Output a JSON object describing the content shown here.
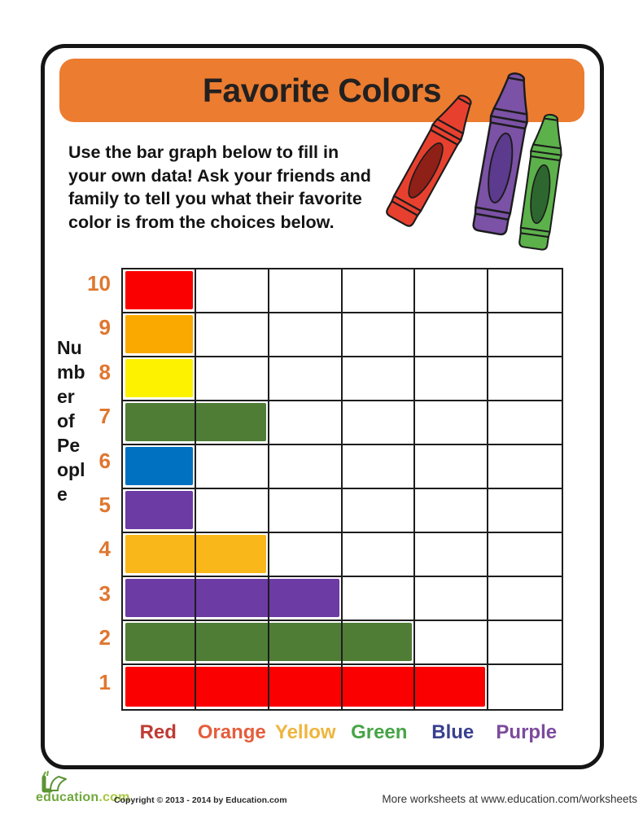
{
  "page": {
    "title_banner": {
      "label": "Favorite Colors",
      "bg_color": "#EC7C30",
      "text_color": "#232020"
    },
    "instructions": "Use the bar graph below to fill in\nyour own data! Ask your friends and\nfamily to tell you what their favorite\ncolor is from the choices below.",
    "footer": {
      "logo_education": "education",
      "logo_com": ".com",
      "logo_green": "#6FA83C",
      "logo_light_green": "#A6C73D",
      "copyright": "Copyright © 2013 - 2014 by Education.com",
      "more_worksheets": "More worksheets at www.education.com/worksheets"
    }
  },
  "crayons": [
    {
      "name": "red-crayon",
      "body": "#E8402F",
      "label_oval": "#8E2017"
    },
    {
      "name": "purple-crayon",
      "body": "#7B52A5",
      "label_oval": "#5C3A8E"
    },
    {
      "name": "green-crayon",
      "body": "#5CB14B",
      "label_oval": "#2E662F"
    }
  ],
  "chart_data": {
    "type": "bar",
    "orientation": "horizontal-grid",
    "title": "Favorite Colors",
    "ylabel": "Number of People",
    "ylabel_wrapped": "Nu\nmb\ner\nof\nPe\nopl\ne",
    "columns": 6,
    "grid": true,
    "row_numbers_color": "#E0762F",
    "rows": [
      {
        "number": 10,
        "bar_color_name": "red",
        "bar_color": "#FA0000",
        "cells_filled": 1
      },
      {
        "number": 9,
        "bar_color_name": "orange",
        "bar_color": "#FAA901",
        "cells_filled": 1
      },
      {
        "number": 8,
        "bar_color_name": "yellow",
        "bar_color": "#FDF200",
        "cells_filled": 1
      },
      {
        "number": 7,
        "bar_color_name": "green",
        "bar_color": "#4F7D36",
        "cells_filled": 2
      },
      {
        "number": 6,
        "bar_color_name": "blue",
        "bar_color": "#0070C0",
        "cells_filled": 1
      },
      {
        "number": 5,
        "bar_color_name": "purple",
        "bar_color": "#6C3BA4",
        "cells_filled": 1
      },
      {
        "number": 4,
        "bar_color_name": "gold",
        "bar_color": "#F9B71A",
        "cells_filled": 2
      },
      {
        "number": 3,
        "bar_color_name": "purple",
        "bar_color": "#6C3BA4",
        "cells_filled": 3
      },
      {
        "number": 2,
        "bar_color_name": "green",
        "bar_color": "#4F7D36",
        "cells_filled": 4
      },
      {
        "number": 1,
        "bar_color_name": "red",
        "bar_color": "#FA0000",
        "cells_filled": 5
      }
    ],
    "x_categories": [
      {
        "label": "Red",
        "color": "#BE3B33"
      },
      {
        "label": "Orange",
        "color": "#E55D3C"
      },
      {
        "label": "Yellow",
        "color": "#EFB53D"
      },
      {
        "label": "Green",
        "color": "#47A447"
      },
      {
        "label": "Blue",
        "color": "#39408F"
      },
      {
        "label": "Purple",
        "color": "#7C4A9D"
      }
    ]
  }
}
